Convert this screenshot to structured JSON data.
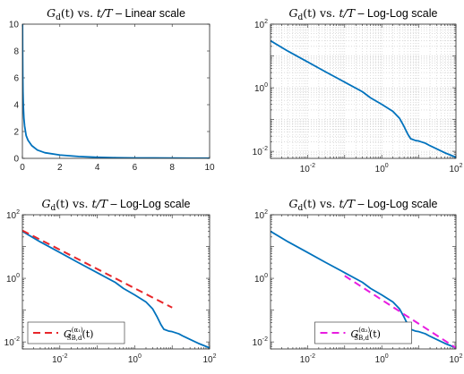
{
  "chart_data": [
    {
      "type": "line",
      "title": "G_d(t) vs. t/T – Linear scale",
      "title_parts": {
        "sym": "G",
        "sub": "d",
        "arg": "(t) vs. ",
        "var": "t/T",
        "rest": " – Linear scale"
      },
      "xscale": "linear",
      "yscale": "linear",
      "xlim": [
        0,
        10
      ],
      "ylim": [
        0,
        10
      ],
      "xticks": [
        0,
        2,
        4,
        6,
        8,
        10
      ],
      "yticks": [
        0,
        2,
        4,
        6,
        8,
        10
      ],
      "grid": false,
      "legend": null,
      "series": [
        {
          "color": "#0072BD",
          "style": "solid",
          "x": [
            0.0065,
            0.009,
            0.013,
            0.02,
            0.03,
            0.05,
            0.08,
            0.12,
            0.2,
            0.3,
            0.5,
            0.8,
            1.2,
            2,
            3,
            4,
            5,
            6,
            7,
            8,
            9,
            10
          ],
          "y": [
            10,
            9.2,
            7.7,
            6.2,
            5.0,
            3.9,
            3.0,
            2.4,
            1.7,
            1.35,
            0.95,
            0.62,
            0.42,
            0.25,
            0.14,
            0.08,
            0.05,
            0.035,
            0.03,
            0.025,
            0.018,
            0.016
          ]
        }
      ]
    },
    {
      "type": "line",
      "title": "G_d(t) vs. t/T – Log-Log scale",
      "title_parts": {
        "sym": "G",
        "sub": "d",
        "arg": "(t) vs. ",
        "var": "t/T",
        "rest": " – Log-Log scale"
      },
      "xscale": "log",
      "yscale": "log",
      "xlim": [
        0.001,
        100
      ],
      "ylim": [
        0.006,
        100
      ],
      "xticks": [
        {
          "base": "10",
          "exp": "-2",
          "v": 0.01
        },
        {
          "base": "10",
          "exp": "0",
          "v": 1
        },
        {
          "base": "10",
          "exp": "2",
          "v": 100
        }
      ],
      "yticks": [
        {
          "base": "10",
          "exp": "-2",
          "v": 0.01
        },
        {
          "base": "10",
          "exp": "0",
          "v": 1
        },
        {
          "base": "10",
          "exp": "2",
          "v": 100
        }
      ],
      "grid": true,
      "legend": null,
      "series": [
        {
          "color": "#0072BD",
          "style": "solid",
          "x": [
            0.001,
            0.003,
            0.01,
            0.03,
            0.1,
            0.3,
            0.5,
            1,
            2,
            3,
            4,
            5,
            6,
            8,
            10,
            15,
            20,
            30,
            50,
            100
          ],
          "y": [
            30,
            14,
            6.5,
            3.2,
            1.5,
            0.75,
            0.48,
            0.3,
            0.18,
            0.11,
            0.06,
            0.035,
            0.025,
            0.022,
            0.021,
            0.018,
            0.015,
            0.012,
            0.009,
            0.0065
          ]
        }
      ]
    },
    {
      "type": "line",
      "title": "G_d(t) vs. t/T – Log-Log scale",
      "title_parts": {
        "sym": "G",
        "sub": "d",
        "arg": "(t) vs. ",
        "var": "t/T",
        "rest": " – Log-Log scale"
      },
      "xscale": "log",
      "yscale": "log",
      "xlim": [
        0.001,
        100
      ],
      "ylim": [
        0.006,
        100
      ],
      "xticks": [
        {
          "base": "10",
          "exp": "-2",
          "v": 0.01
        },
        {
          "base": "10",
          "exp": "0",
          "v": 1
        },
        {
          "base": "10",
          "exp": "2",
          "v": 100
        }
      ],
      "yticks": [
        {
          "base": "10",
          "exp": "-2",
          "v": 0.01
        },
        {
          "base": "10",
          "exp": "0",
          "v": 1
        },
        {
          "base": "10",
          "exp": "2",
          "v": 100
        }
      ],
      "grid": false,
      "legend": {
        "position": "bottom-left",
        "label_sym": "G",
        "label_sup": "(α₁)",
        "label_sub": "SB,d",
        "label_arg": "(t)"
      },
      "series": [
        {
          "color": "#0072BD",
          "style": "solid",
          "x": [
            0.001,
            0.003,
            0.01,
            0.03,
            0.1,
            0.3,
            0.5,
            1,
            2,
            3,
            4,
            5,
            6,
            8,
            10,
            15,
            20,
            30,
            50,
            100
          ],
          "y": [
            30,
            14,
            6.5,
            3.2,
            1.5,
            0.75,
            0.48,
            0.3,
            0.18,
            0.11,
            0.06,
            0.035,
            0.025,
            0.022,
            0.021,
            0.018,
            0.015,
            0.012,
            0.009,
            0.0065
          ]
        },
        {
          "color": "#E8262A",
          "style": "dashed",
          "legend": true,
          "x": [
            0.001,
            10
          ],
          "y": [
            32,
            0.12
          ]
        }
      ]
    },
    {
      "type": "line",
      "title": "G_d(t) vs. t/T – Log-Log scale",
      "title_parts": {
        "sym": "G",
        "sub": "d",
        "arg": "(t) vs. ",
        "var": "t/T",
        "rest": " – Log-Log scale"
      },
      "xscale": "log",
      "yscale": "log",
      "xlim": [
        0.001,
        100
      ],
      "ylim": [
        0.006,
        100
      ],
      "xticks": [
        {
          "base": "10",
          "exp": "-2",
          "v": 0.01
        },
        {
          "base": "10",
          "exp": "0",
          "v": 1
        },
        {
          "base": "10",
          "exp": "2",
          "v": 100
        }
      ],
      "yticks": [
        {
          "base": "10",
          "exp": "-2",
          "v": 0.01
        },
        {
          "base": "10",
          "exp": "0",
          "v": 1
        },
        {
          "base": "10",
          "exp": "2",
          "v": 100
        }
      ],
      "grid": false,
      "legend": {
        "position": "bottom-center",
        "label_sym": "G",
        "label_sup": "(α₂)",
        "label_sub": "SB,d",
        "label_arg": "(t)"
      },
      "series": [
        {
          "color": "#0072BD",
          "style": "solid",
          "x": [
            0.001,
            0.003,
            0.01,
            0.03,
            0.1,
            0.3,
            0.5,
            1,
            2,
            3,
            4,
            5,
            6,
            8,
            10,
            15,
            20,
            30,
            50,
            100
          ],
          "y": [
            30,
            14,
            6.5,
            3.2,
            1.5,
            0.75,
            0.48,
            0.3,
            0.18,
            0.11,
            0.06,
            0.035,
            0.025,
            0.022,
            0.021,
            0.018,
            0.015,
            0.012,
            0.009,
            0.0065
          ]
        },
        {
          "color": "#E81CE0",
          "style": "dashed",
          "legend": true,
          "x": [
            0.1,
            100
          ],
          "y": [
            1.2,
            0.0065
          ]
        }
      ]
    }
  ]
}
